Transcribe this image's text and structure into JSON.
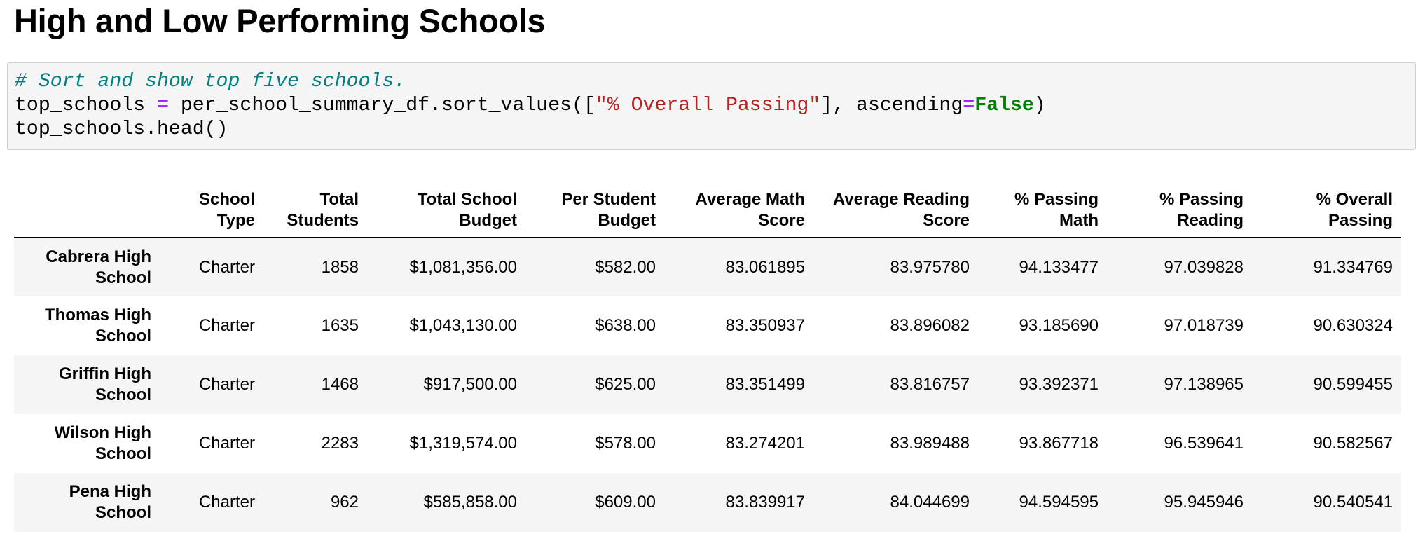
{
  "heading": "High and Low Performing Schools",
  "code": {
    "comment": "# Sort and show top five schools.",
    "line2": {
      "var": "top_schools",
      "op": "=",
      "call_start": "per_school_summary_df.sort_values([",
      "string": "\"% Overall Passing\"",
      "call_mid": "], ascending",
      "eq": "=",
      "kw": "False",
      "close": ")"
    },
    "line3": "top_schools.head()"
  },
  "table": {
    "columns": [
      [
        "School",
        "Type"
      ],
      [
        "Total",
        "Students"
      ],
      [
        "Total School",
        "Budget"
      ],
      [
        "Per Student",
        "Budget"
      ],
      [
        "Average Math",
        "Score"
      ],
      [
        "Average Reading",
        "Score"
      ],
      [
        "% Passing",
        "Math"
      ],
      [
        "% Passing",
        "Reading"
      ],
      [
        "% Overall",
        "Passing"
      ]
    ],
    "rows": [
      {
        "index": [
          "Cabrera High",
          "School"
        ],
        "cells": [
          "Charter",
          "1858",
          "$1,081,356.00",
          "$582.00",
          "83.061895",
          "83.975780",
          "94.133477",
          "97.039828",
          "91.334769"
        ]
      },
      {
        "index": [
          "Thomas High",
          "School"
        ],
        "cells": [
          "Charter",
          "1635",
          "$1,043,130.00",
          "$638.00",
          "83.350937",
          "83.896082",
          "93.185690",
          "97.018739",
          "90.630324"
        ]
      },
      {
        "index": [
          "Griffin High",
          "School"
        ],
        "cells": [
          "Charter",
          "1468",
          "$917,500.00",
          "$625.00",
          "83.351499",
          "83.816757",
          "93.392371",
          "97.138965",
          "90.599455"
        ]
      },
      {
        "index": [
          "Wilson High",
          "School"
        ],
        "cells": [
          "Charter",
          "2283",
          "$1,319,574.00",
          "$578.00",
          "83.274201",
          "83.989488",
          "93.867718",
          "96.539641",
          "90.582567"
        ]
      },
      {
        "index": [
          "Pena High",
          "School"
        ],
        "cells": [
          "Charter",
          "962",
          "$585,858.00",
          "$609.00",
          "83.839917",
          "84.044699",
          "94.594595",
          "95.945946",
          "90.540541"
        ]
      }
    ]
  }
}
